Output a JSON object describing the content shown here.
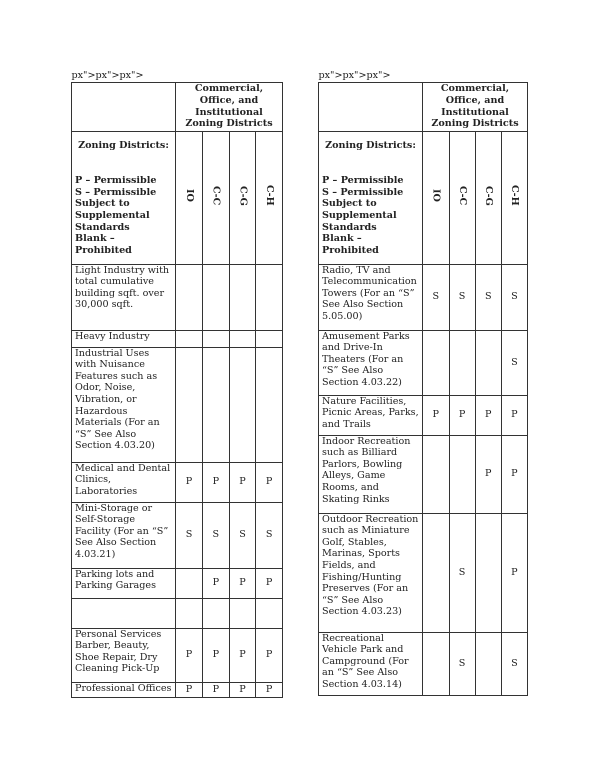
{
  "header": "Commercial, Office, and Institutional Zoning Districts",
  "legend": {
    "title": "Zoning Districts:",
    "lines": [
      "P – Permissible",
      "S – Permissible Subject to Supplemental Standards",
      "Blank – Prohibited"
    ]
  },
  "columns": [
    "IO",
    "C-C",
    "C-G",
    "C-H"
  ],
  "left_rows": [
    {
      "use": "Light Industry with total cumulative building sqft. over 30,000 sqft.",
      "values": [
        "",
        "",
        "",
        ""
      ]
    },
    {
      "use": "Heavy Industry",
      "values": [
        "",
        "",
        "",
        ""
      ]
    },
    {
      "use": "Industrial Uses with Nuisance Features such as Odor, Noise, Vibration, or Hazardous Materials (For an “S” See Also Section 4.03.20)",
      "values": [
        "",
        "",
        "",
        ""
      ]
    },
    {
      "use": "Medical and Dental Clinics, Laboratories",
      "values": [
        "P",
        "P",
        "P",
        "P"
      ]
    },
    {
      "use": "Mini-Storage or Self-Storage Facility (For an “S” See Also Section 4.03.21)",
      "values": [
        "S",
        "S",
        "S",
        "S"
      ]
    },
    {
      "use": "Parking lots and Parking Garages",
      "values": [
        "",
        "P",
        "P",
        "P"
      ]
    },
    {
      "use": "",
      "values": [
        "",
        "",
        "",
        ""
      ]
    },
    {
      "use": "Personal Services Barber, Beauty, Shoe Repair, Dry Cleaning Pick-Up",
      "values": [
        "P",
        "P",
        "P",
        "P"
      ]
    },
    {
      "use": "Professional Offices",
      "values": [
        "P",
        "P",
        "P",
        "P"
      ]
    }
  ],
  "right_rows": [
    {
      "use": "Radio, TV and Telecommunication Towers (For an “S” See Also Section 5.05.00)",
      "values": [
        "S",
        "S",
        "S",
        "S"
      ]
    },
    {
      "use": "Amusement Parks and Drive-In Theaters (For an “S” See Also Section 4.03.22)",
      "values": [
        "",
        "",
        "",
        "S"
      ]
    },
    {
      "use": "Nature Facilities, Picnic Areas, Parks, and Trails",
      "values": [
        "P",
        "P",
        "P",
        "P"
      ]
    },
    {
      "use": "Indoor Recreation such as Billiard Parlors, Bowling Alleys, Game Rooms, and Skating Rinks",
      "values": [
        "",
        "",
        "P",
        "P"
      ]
    },
    {
      "use": "Outdoor Recreation such as Miniature Golf, Stables, Marinas, Sports Fields, and Fishing/Hunting Preserves (For an “S” See Also Section 4.03.23)",
      "values": [
        "",
        "S",
        "",
        "P"
      ]
    },
    {
      "use": "Recreational Vehicle Park and Campground (For an “S” See Also Section 4.03.14)",
      "values": [
        "",
        "S",
        "",
        "S"
      ]
    }
  ]
}
